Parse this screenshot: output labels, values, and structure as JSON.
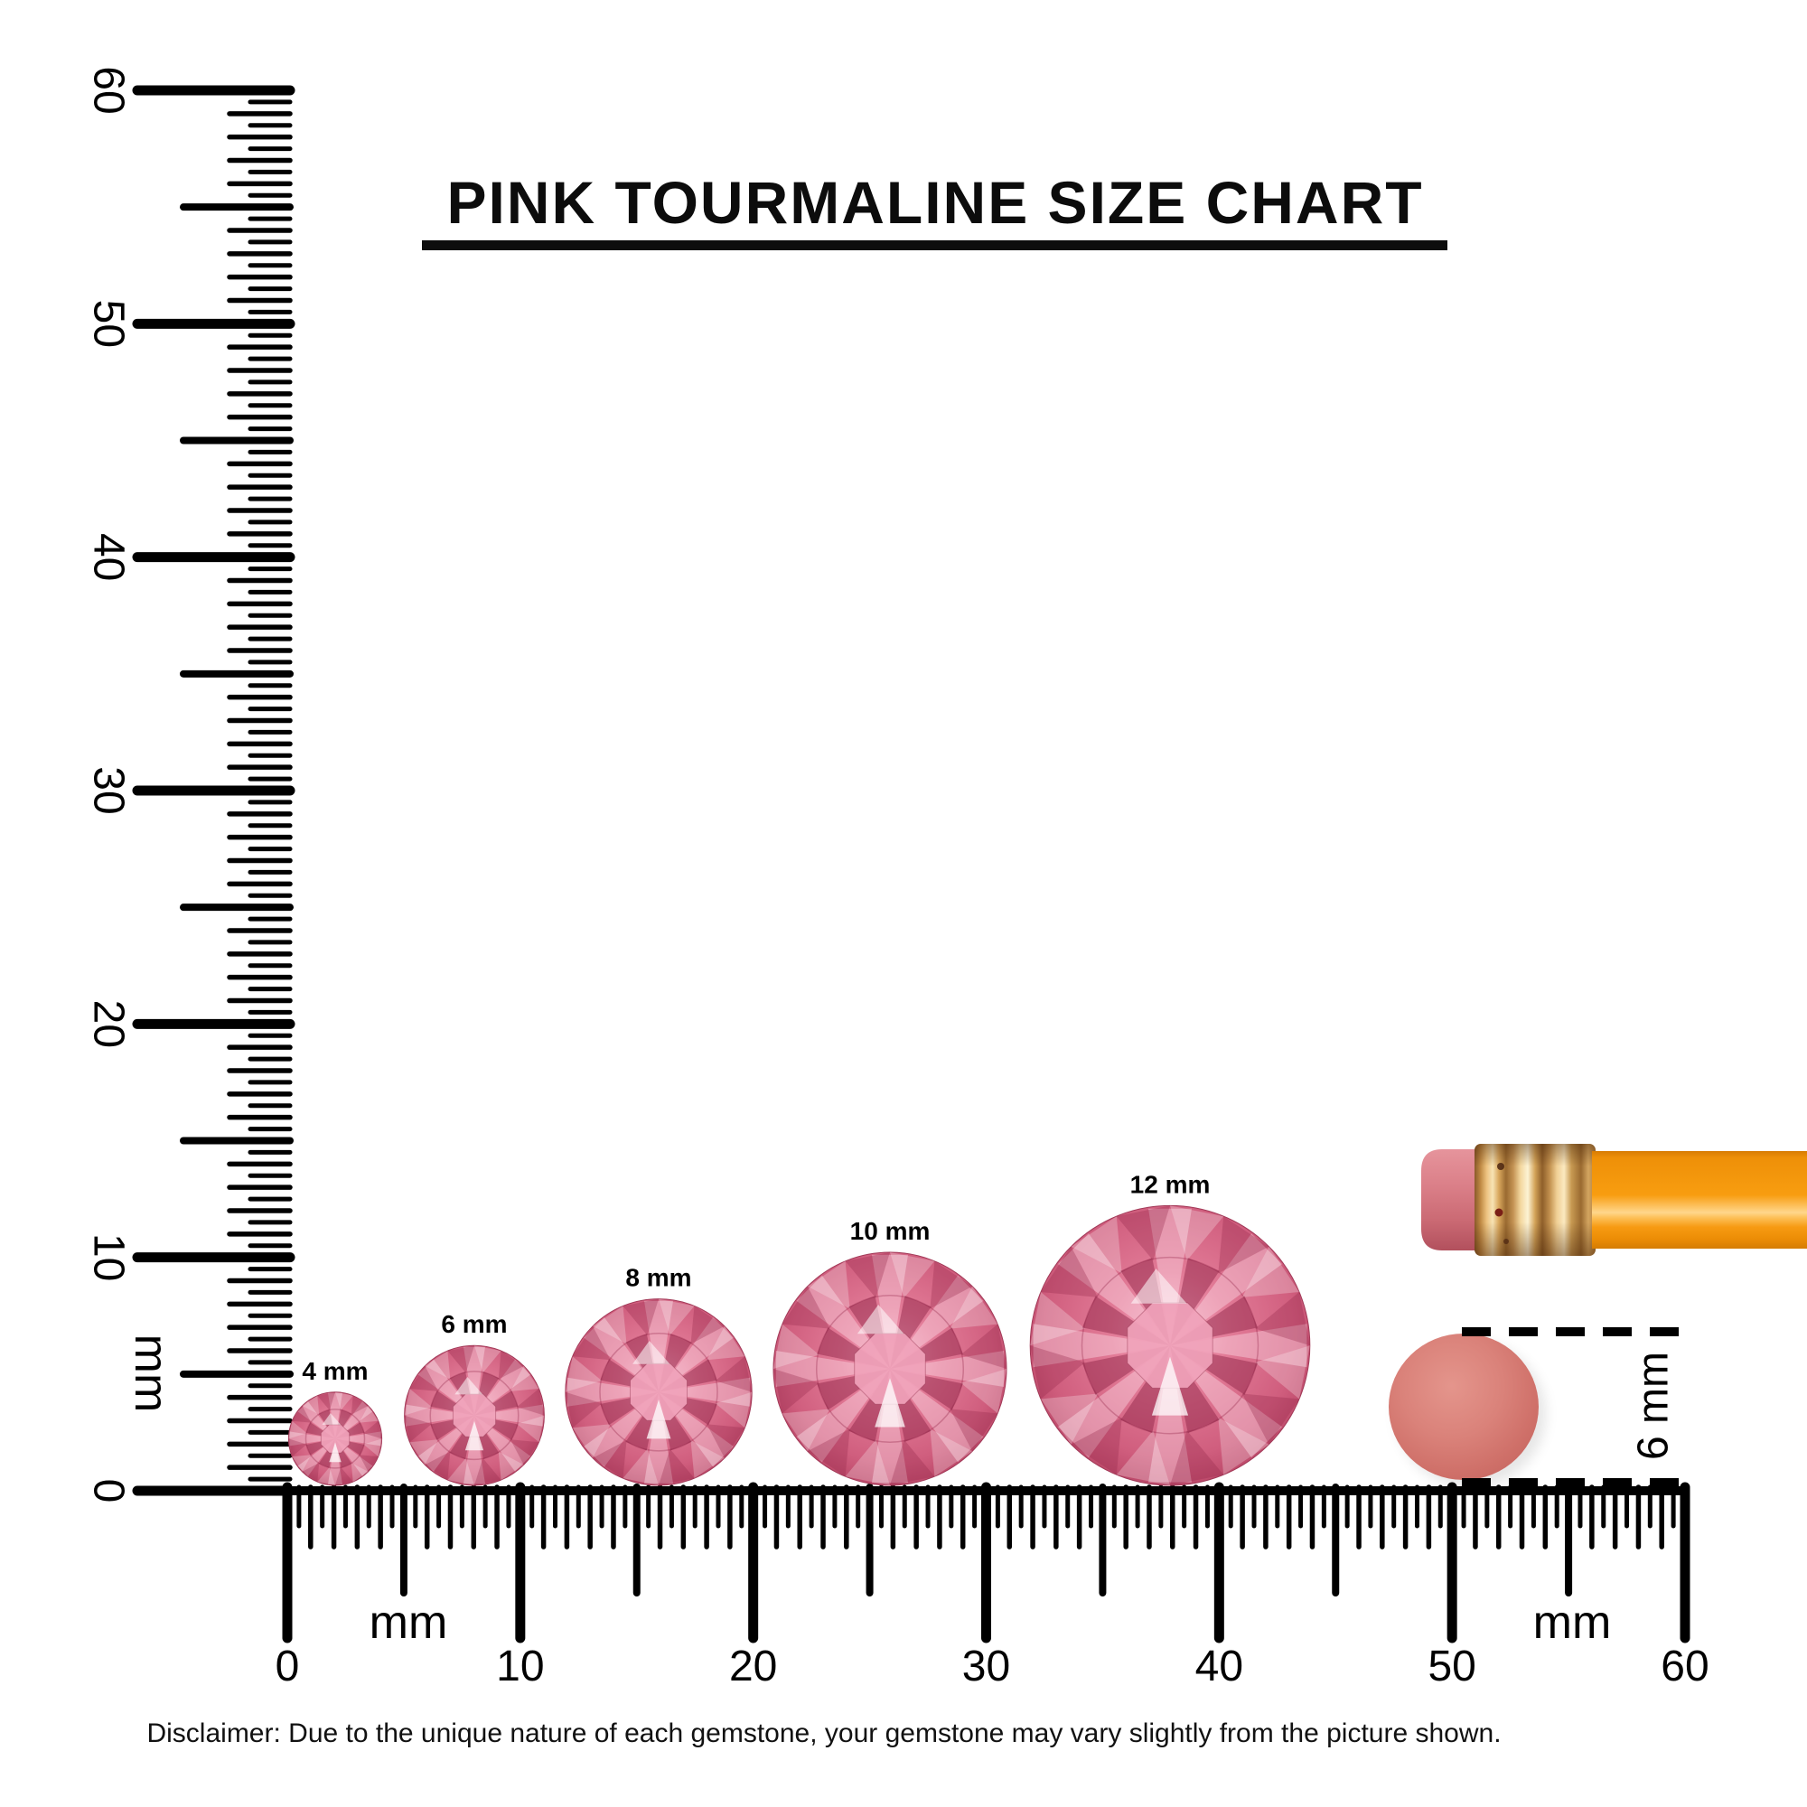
{
  "title": {
    "text": "PINK TOURMALINE SIZE CHART"
  },
  "rulers": {
    "vertical": {
      "orientation": "vertical",
      "min_mm": 0,
      "max_mm": 60,
      "tick_labels": [
        "0",
        "10",
        "20",
        "30",
        "40",
        "50",
        "60"
      ],
      "unit_label": "mm"
    },
    "horizontal": {
      "orientation": "horizontal",
      "min_mm": 0,
      "max_mm": 60,
      "tick_labels": [
        "0",
        "10",
        "20",
        "30",
        "40",
        "50",
        "60"
      ],
      "unit_label_left": "mm",
      "unit_label_right": "mm"
    }
  },
  "gems": [
    {
      "label": "4 mm",
      "size_mm": 4
    },
    {
      "label": "6 mm",
      "size_mm": 6
    },
    {
      "label": "8 mm",
      "size_mm": 8
    },
    {
      "label": "10 mm",
      "size_mm": 10
    },
    {
      "label": "12 mm",
      "size_mm": 12
    }
  ],
  "comparison": {
    "pencil_object": "pencil-with-eraser",
    "disc_object": "pencil-eraser-disc",
    "disc_dimension_label": "6 mm"
  },
  "disclaimer": {
    "text": "Disclaimer: Due to the unique nature of each gemstone, your gemstone may vary slightly from the picture shown."
  },
  "colors": {
    "ink_black": "#000000",
    "gem_pink": "#e27b97",
    "gem_dark": "#a63a58",
    "gem_deep": "#8e2c48",
    "gem_light": "#f4adc3",
    "disc_salmon": "#d97a72",
    "pencil_orange": "#f89d10",
    "eraser_pink": "#db8089",
    "ferrule_copper": "#d9a85e"
  }
}
